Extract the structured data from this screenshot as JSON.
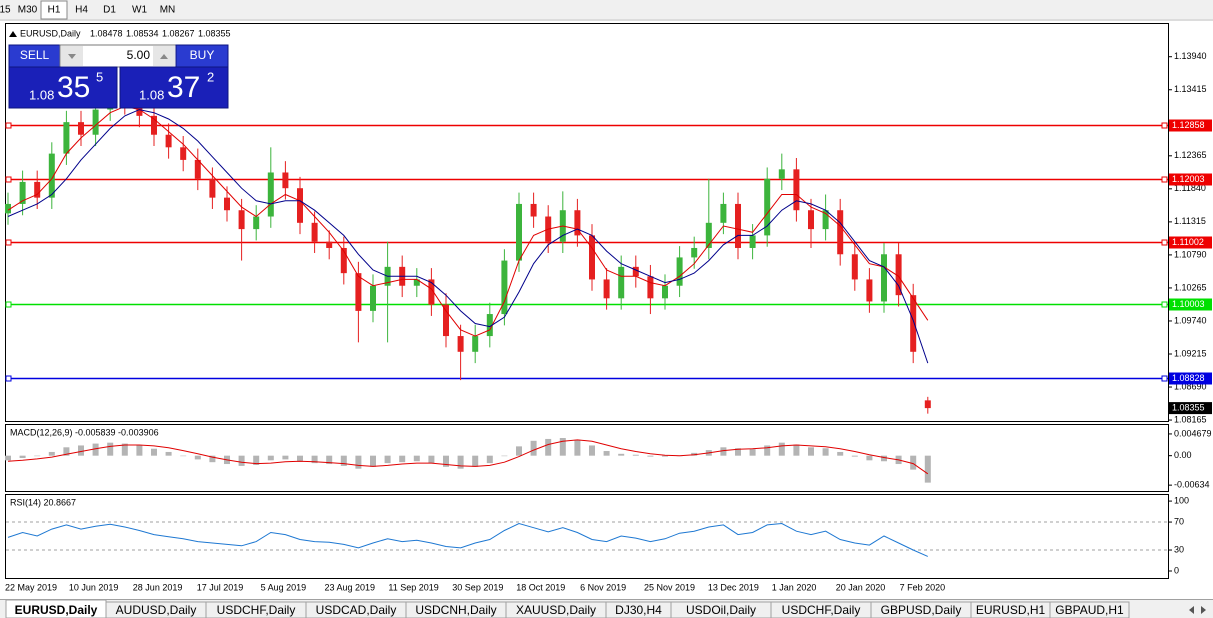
{
  "toolbar": {
    "timeframes": [
      "15",
      "M30",
      "H1",
      "H4",
      "D1",
      "W1",
      "MN"
    ],
    "active_timeframe": "H1"
  },
  "trade_panel": {
    "sell": "SELL",
    "buy": "BUY",
    "lots": "5.00",
    "bid": {
      "big": "1.08",
      "pips": "35",
      "frac": "5"
    },
    "ask": {
      "big": "1.08",
      "pips": "37",
      "frac": "2"
    }
  },
  "chart_data": [
    {
      "type": "candlestick",
      "title": "EURUSD,Daily",
      "header_values": [
        1.08478,
        1.08534,
        1.08267,
        1.08355
      ],
      "last_price": 1.08355,
      "ylim": [
        1.0815,
        1.1446
      ],
      "yticks": [
        {
          "value": 1.1394,
          "label": "1.13940"
        },
        1.13415,
        1.12365,
        {
          "value": 1.1184,
          "label": "1.11840"
        },
        1.11315,
        {
          "value": 1.1079,
          "label": "1.10790"
        },
        1.10265,
        {
          "value": 1.0974,
          "label": "1.09740"
        },
        1.09215,
        {
          "value": 1.0869,
          "label": "1.08690"
        },
        1.08165
      ],
      "x_labels": [
        "22 May 2019",
        "10 Jun 2019",
        "28 Jun 2019",
        "17 Jul 2019",
        "5 Aug 2019",
        "23 Aug 2019",
        "11 Sep 2019",
        "30 Sep 2019",
        "18 Oct 2019",
        "6 Nov 2019",
        "25 Nov 2019",
        "13 Dec 2019",
        "1 Jan 2020",
        "20 Jan 2020",
        "7 Feb 2020"
      ],
      "up_color": "#3cb43c",
      "down_color": "#e52020",
      "open": [
        1.1145,
        1.116,
        1.1195,
        1.117,
        1.124,
        1.129,
        1.127,
        1.131,
        1.133,
        1.132,
        1.13,
        1.127,
        1.125,
        1.123,
        1.12,
        1.117,
        1.115,
        1.112,
        1.114,
        1.121,
        1.1185,
        1.113,
        1.11,
        1.109,
        1.105,
        1.099,
        1.103,
        1.106,
        1.103,
        1.104,
        1.1,
        1.095,
        1.0925,
        1.095,
        1.0985,
        1.107,
        1.116,
        1.114,
        1.11,
        1.115,
        1.111,
        1.104,
        1.101,
        1.106,
        1.1045,
        1.101,
        1.103,
        1.1075,
        1.109,
        1.113,
        1.116,
        1.109,
        1.111,
        1.12,
        1.1215,
        1.115,
        1.112,
        1.115,
        1.108,
        1.104,
        1.1005,
        1.108,
        1.1015,
        1.08478
      ],
      "high": [
        1.1178,
        1.1213,
        1.1213,
        1.1258,
        1.1308,
        1.1308,
        1.1328,
        1.1348,
        1.1348,
        1.1338,
        1.1318,
        1.1288,
        1.1268,
        1.1248,
        1.1218,
        1.1188,
        1.1168,
        1.1158,
        1.125,
        1.1228,
        1.1203,
        1.1148,
        1.1118,
        1.1108,
        1.1068,
        1.1048,
        1.11,
        1.1078,
        1.1058,
        1.1058,
        1.1018,
        1.0968,
        1.0968,
        1.1003,
        1.1088,
        1.1178,
        1.1178,
        1.1158,
        1.118,
        1.1168,
        1.1128,
        1.1058,
        1.1078,
        1.1078,
        1.1063,
        1.1048,
        1.1093,
        1.1108,
        1.12,
        1.1178,
        1.1178,
        1.1128,
        1.1218,
        1.124,
        1.1233,
        1.1168,
        1.1175,
        1.1168,
        1.1098,
        1.1058,
        1.1098,
        1.1098,
        1.1033,
        1.08534
      ],
      "low": [
        1.1127,
        1.1142,
        1.1152,
        1.1152,
        1.1222,
        1.1252,
        1.1252,
        1.1292,
        1.1302,
        1.1282,
        1.1252,
        1.1232,
        1.1212,
        1.1182,
        1.1152,
        1.1132,
        1.107,
        1.1102,
        1.1122,
        1.1167,
        1.1112,
        1.1082,
        1.1072,
        1.1032,
        1.094,
        1.0972,
        1.094,
        1.1012,
        1.1012,
        1.0982,
        1.0932,
        1.088,
        1.0907,
        1.0932,
        1.0967,
        1.1052,
        1.1122,
        1.1082,
        1.1082,
        1.1092,
        1.1022,
        1.0992,
        1.0992,
        1.1027,
        1.0985,
        1.0992,
        1.1012,
        1.1057,
        1.1072,
        1.1112,
        1.1072,
        1.1072,
        1.1092,
        1.1182,
        1.1132,
        1.109,
        1.1102,
        1.1062,
        1.1022,
        1.0987,
        1.0987,
        1.0997,
        1.0907,
        1.08267
      ],
      "close": [
        1.116,
        1.1195,
        1.117,
        1.124,
        1.129,
        1.127,
        1.131,
        1.133,
        1.132,
        1.13,
        1.127,
        1.125,
        1.123,
        1.12,
        1.117,
        1.115,
        1.112,
        1.114,
        1.121,
        1.1185,
        1.113,
        1.11,
        1.109,
        1.105,
        1.099,
        1.103,
        1.106,
        1.103,
        1.104,
        1.1,
        1.095,
        1.0925,
        1.095,
        1.0985,
        1.107,
        1.116,
        1.114,
        1.11,
        1.115,
        1.111,
        1.104,
        1.101,
        1.106,
        1.1045,
        1.101,
        1.103,
        1.1075,
        1.109,
        1.113,
        1.116,
        1.109,
        1.111,
        1.12,
        1.1215,
        1.115,
        1.112,
        1.115,
        1.108,
        1.104,
        1.1005,
        1.108,
        1.1015,
        1.0925,
        1.08355
      ],
      "series": [
        {
          "color": "#e00000",
          "values": [
            1.115,
            1.1165,
            1.1175,
            1.12,
            1.124,
            1.1265,
            1.1285,
            1.1305,
            1.1315,
            1.131,
            1.1295,
            1.1275,
            1.1255,
            1.123,
            1.1205,
            1.118,
            1.1155,
            1.114,
            1.116,
            1.1175,
            1.1165,
            1.114,
            1.1115,
            1.1085,
            1.1045,
            1.103,
            1.1035,
            1.104,
            1.104,
            1.1025,
            1.099,
            1.096,
            1.095,
            1.096,
            1.1005,
            1.107,
            1.111,
            1.112,
            1.1125,
            1.112,
            1.109,
            1.1055,
            1.1045,
            1.1045,
            1.1035,
            1.103,
            1.1045,
            1.1065,
            1.1095,
            1.1125,
            1.112,
            1.1115,
            1.1145,
            1.1175,
            1.1175,
            1.1155,
            1.1145,
            1.1125,
            1.1095,
            1.1065,
            1.106,
            1.1045,
            1.101,
            1.0975
          ]
        },
        {
          "color": "#00008b",
          "values": [
            1.114,
            1.115,
            1.116,
            1.1175,
            1.12,
            1.123,
            1.1255,
            1.128,
            1.13,
            1.131,
            1.1305,
            1.1295,
            1.128,
            1.126,
            1.1235,
            1.121,
            1.1185,
            1.1165,
            1.116,
            1.1165,
            1.1165,
            1.115,
            1.113,
            1.111,
            1.108,
            1.1055,
            1.1045,
            1.1045,
            1.1045,
            1.1035,
            1.1015,
            1.099,
            1.097,
            1.0965,
            1.098,
            1.102,
            1.1065,
            1.1095,
            1.111,
            1.112,
            1.111,
            1.1085,
            1.1065,
            1.1055,
            1.1045,
            1.1035,
            1.104,
            1.105,
            1.107,
            1.1095,
            1.111,
            1.111,
            1.1125,
            1.115,
            1.1165,
            1.116,
            1.115,
            1.113,
            1.11,
            1.107,
            1.106,
            1.103,
            1.0975,
            1.0907
          ]
        }
      ],
      "levels": [
        {
          "value": 1.12858,
          "color": "#ee0000"
        },
        {
          "value": 1.12003,
          "color": "#ee0000"
        },
        {
          "value": 1.11002,
          "color": "#ee0000"
        },
        {
          "value": 1.10003,
          "color": "#00e000"
        },
        {
          "value": 1.08828,
          "color": "#0000e0"
        }
      ]
    },
    {
      "type": "macd",
      "title": "MACD(12,26,9) -0.005839 -0.003906",
      "ylim": [
        -0.0076,
        0.0066
      ],
      "yticks": [
        0.004679,
        {
          "value": 0,
          "label": "0.00"
        },
        -0.00634
      ],
      "histogram_color": "#b4b4b4",
      "signal_color": "#e00000",
      "values": [
        -0.001,
        -0.0005,
        0.0,
        0.0008,
        0.0018,
        0.0022,
        0.0026,
        0.0028,
        0.0026,
        0.0022,
        0.0015,
        0.0008,
        0.0,
        -0.0008,
        -0.0014,
        -0.0018,
        -0.0022,
        -0.002,
        -0.001,
        -0.0008,
        -0.0012,
        -0.0016,
        -0.0018,
        -0.0022,
        -0.0028,
        -0.0024,
        -0.0016,
        -0.0014,
        -0.0012,
        -0.0016,
        -0.0024,
        -0.0028,
        -0.0024,
        -0.0016,
        0.0,
        0.002,
        0.0032,
        0.0036,
        0.0038,
        0.0034,
        0.0022,
        0.001,
        0.0004,
        0.0002,
        -0.0002,
        -0.0002,
        0.0,
        0.0006,
        0.0012,
        0.0018,
        0.0016,
        0.0014,
        0.0022,
        0.0028,
        0.0024,
        0.0018,
        0.0016,
        0.0008,
        -0.0002,
        -0.001,
        -0.0012,
        -0.0018,
        -0.003,
        -0.0058
      ],
      "signal": [
        -0.0012,
        -0.001,
        -0.0007,
        -0.0003,
        0.0003,
        0.0009,
        0.0015,
        0.002,
        0.0023,
        0.0023,
        0.0021,
        0.0017,
        0.0011,
        0.0004,
        -0.0003,
        -0.0009,
        -0.0014,
        -0.0017,
        -0.0016,
        -0.0013,
        -0.0012,
        -0.0013,
        -0.0015,
        -0.0017,
        -0.0021,
        -0.0023,
        -0.0021,
        -0.0018,
        -0.0016,
        -0.0016,
        -0.0019,
        -0.0022,
        -0.0023,
        -0.0021,
        -0.0014,
        -0.0002,
        0.0012,
        0.0024,
        0.0031,
        0.0034,
        0.0031,
        0.0023,
        0.0015,
        0.0009,
        0.0004,
        0.0001,
        0.0,
        0.0002,
        0.0006,
        0.0011,
        0.0014,
        0.0015,
        0.0017,
        0.0021,
        0.0023,
        0.0021,
        0.0019,
        0.0015,
        0.0009,
        0.0002,
        -0.0004,
        -0.0009,
        -0.0017,
        -0.0039
      ]
    },
    {
      "type": "rsi",
      "title": "RSI(14) 20.8667",
      "ylim": [
        -10,
        108.7
      ],
      "yticks": [
        100,
        70,
        30,
        0
      ],
      "levels": [
        70,
        30
      ],
      "color": "#1e78d2",
      "values": [
        48,
        55,
        50,
        60,
        66,
        60,
        64,
        67,
        63,
        58,
        52,
        49,
        46,
        42,
        40,
        38,
        36,
        42,
        55,
        52,
        45,
        42,
        41,
        38,
        33,
        40,
        46,
        42,
        44,
        40,
        35,
        33,
        40,
        45,
        58,
        68,
        62,
        56,
        62,
        55,
        45,
        42,
        50,
        47,
        42,
        46,
        54,
        57,
        63,
        66,
        52,
        55,
        66,
        68,
        57,
        52,
        57,
        45,
        40,
        37,
        50,
        40,
        30,
        20.8667
      ]
    }
  ],
  "tabs": [
    "EURUSD,Daily",
    "AUDUSD,Daily",
    "USDCHF,Daily",
    "USDCAD,Daily",
    "USDCNH,Daily",
    "XAUUSD,Daily",
    "DJ30,H4",
    "USDOil,Daily",
    "USDCHF,Daily",
    "GBPUSD,Daily",
    "EURUSD,H1",
    "GBPAUD,H1"
  ],
  "active_tab": "EURUSD,Daily"
}
